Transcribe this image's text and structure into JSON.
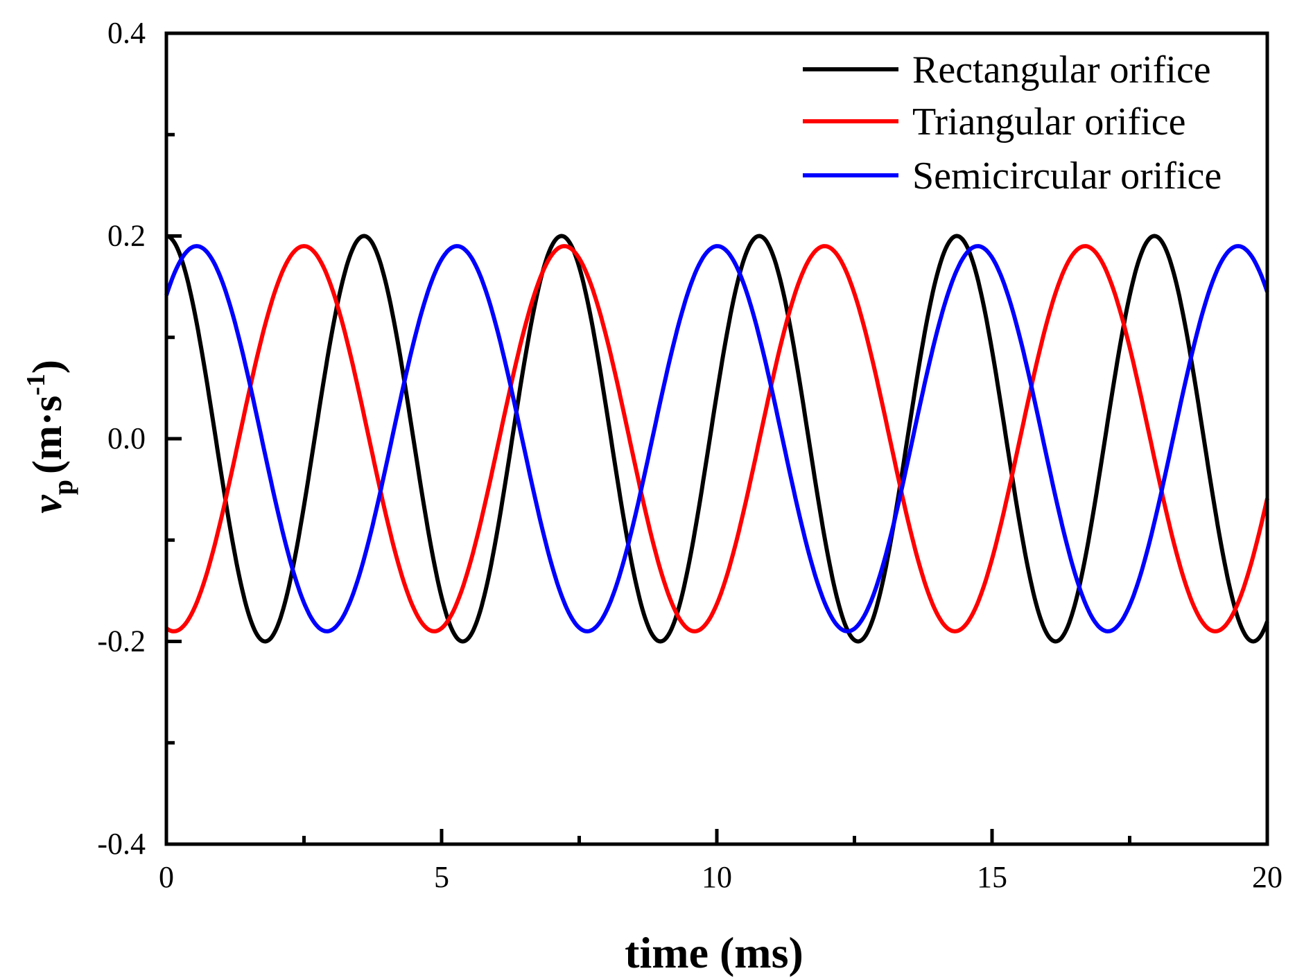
{
  "chart_data": {
    "type": "line",
    "title": "",
    "xlabel": "time (ms)",
    "ylabel": {
      "symbol": "v",
      "subscript": "p",
      "units_open": "(m·s",
      "units_exp": "-1",
      "units_close": ")"
    },
    "xlim": [
      0,
      20
    ],
    "ylim": [
      -0.4,
      0.4
    ],
    "x_ticks": [
      0,
      5,
      10,
      15,
      20
    ],
    "y_ticks": [
      -0.4,
      -0.2,
      0.0,
      0.2,
      0.4
    ],
    "x_tick_labels": [
      "0",
      "5",
      "10",
      "15",
      "20"
    ],
    "y_tick_labels": [
      "-0.4",
      "-0.2",
      "0.0",
      "0.2",
      "0.4"
    ],
    "x_minor_ticks": [
      2.5,
      7.5,
      12.5,
      17.5
    ],
    "y_minor_ticks": [
      -0.3,
      -0.1,
      0.1,
      0.3
    ],
    "grid": false,
    "legend_position": "top-right",
    "series": [
      {
        "name": "Rectangular orifice",
        "color": "#000000",
        "amplitude": 0.2,
        "period_ms": 3.59,
        "peak_times_ms": [
          0.0,
          3.75,
          7.3,
          10.9,
          14.5,
          18.1
        ],
        "trough_times_ms": [
          1.95,
          5.55,
          9.1,
          12.7,
          16.3,
          19.9
        ]
      },
      {
        "name": "Triangular orifice",
        "color": "#ff0000",
        "amplitude": 0.19,
        "period_ms": 4.73,
        "peak_times_ms": [
          2.5,
          7.25,
          11.95,
          16.75
        ],
        "trough_times_ms": [
          0.0,
          4.75,
          9.5,
          14.2,
          19.0
        ]
      },
      {
        "name": "Semicircular orifice",
        "color": "#0000ff",
        "amplitude": 0.19,
        "period_ms": 4.73,
        "start_value": 0.1,
        "end_value": 0.12,
        "peak_times_ms": [
          0.55,
          5.3,
          10.05,
          14.8,
          19.55
        ],
        "trough_times_ms": [
          2.75,
          7.5,
          12.25,
          17.0
        ]
      }
    ]
  }
}
